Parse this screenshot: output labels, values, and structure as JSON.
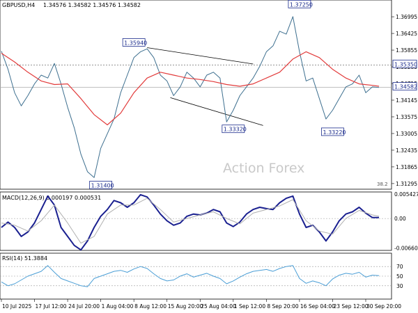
{
  "header": {
    "symbol": "GBPUSD,H4",
    "ohlc": "1.34576 1.34582 1.34576 1.34582"
  },
  "watermark": "Action Forex",
  "chart_data": [
    {
      "type": "line",
      "panel": "price",
      "title": "GBPUSD,H4",
      "subtitle": "1.34576 1.34582 1.34576 1.34582",
      "x_axis_dates": [
        "10 Jul 2025",
        "17 Jul 12:00",
        "24 Jul 20:00",
        "1 Aug 04:00",
        "8 Aug 12:00",
        "15 Aug 20:00",
        "25 Aug 04:00",
        "1 Sep 12:00",
        "8 Sep 20:00",
        "16 Sep 04:00",
        "23 Sep 12:00",
        "30 Sep 20:00"
      ],
      "yticks": [
        "1.36995",
        "1.36425",
        "1.35855",
        "1.35285",
        "1.34715",
        "1.34145",
        "1.33575",
        "1.33005",
        "1.32435",
        "1.31865",
        "1.31295"
      ],
      "ylim": [
        1.3115,
        1.3752
      ],
      "current_price": "1.34582",
      "current_price_value": 1.34582,
      "resistance_level": "1.35350",
      "resistance_value": 1.3535,
      "bottom_right_note": "38.2",
      "labeled_levels": [
        {
          "label": "1.37250",
          "x_date": "16 Sep 04:00",
          "value": 1.3725
        },
        {
          "label": "1.35940",
          "x_date": "8 Aug 12:00",
          "value": 1.3594
        },
        {
          "label": "1.33320",
          "x_date": "1 Sep 12:00",
          "value": 1.3332
        },
        {
          "label": "1.33220",
          "x_date": "23 Sep 12:00",
          "value": 1.3322
        },
        {
          "label": "1.31400",
          "x_date": "1 Aug 04:00",
          "value": 1.314
        }
      ],
      "trendlines": [
        {
          "from": [
            4.4,
            1.3594
          ],
          "to": [
            7.6,
            1.3538
          ]
        },
        {
          "from": [
            5.1,
            1.3423
          ],
          "to": [
            7.9,
            1.3328
          ]
        }
      ],
      "series": [
        {
          "name": "close",
          "color": "#3d6f8f",
          "x": [
            0,
            0.2,
            0.4,
            0.6,
            0.8,
            1.0,
            1.2,
            1.4,
            1.6,
            1.8,
            2.0,
            2.2,
            2.4,
            2.6,
            2.8,
            3.0,
            3.2,
            3.4,
            3.6,
            3.8,
            4.0,
            4.2,
            4.4,
            4.6,
            4.8,
            5.0,
            5.2,
            5.4,
            5.6,
            5.8,
            6.0,
            6.2,
            6.4,
            6.6,
            6.8,
            7.0,
            7.2,
            7.4,
            7.6,
            7.8,
            8.0,
            8.2,
            8.4,
            8.6,
            8.8,
            9.0,
            9.2,
            9.4,
            9.6,
            9.8,
            10.0,
            10.2,
            10.4,
            10.6,
            10.8,
            11.0,
            11.2,
            11.4
          ],
          "values": [
            1.3582,
            1.352,
            1.344,
            1.3395,
            1.343,
            1.347,
            1.35,
            1.349,
            1.354,
            1.347,
            1.339,
            1.332,
            1.323,
            1.317,
            1.315,
            1.325,
            1.33,
            1.335,
            1.344,
            1.35,
            1.356,
            1.358,
            1.359,
            1.356,
            1.35,
            1.348,
            1.343,
            1.346,
            1.351,
            1.349,
            1.346,
            1.35,
            1.351,
            1.349,
            1.334,
            1.338,
            1.343,
            1.346,
            1.349,
            1.353,
            1.358,
            1.36,
            1.365,
            1.364,
            1.37,
            1.358,
            1.348,
            1.349,
            1.342,
            1.335,
            1.338,
            1.342,
            1.346,
            1.347,
            1.35,
            1.344,
            1.346,
            1.3458
          ]
        },
        {
          "name": "moving average",
          "color": "#e23b3b",
          "x": [
            0,
            0.4,
            0.8,
            1.2,
            1.6,
            2.0,
            2.4,
            2.8,
            3.2,
            3.6,
            4.0,
            4.4,
            4.8,
            5.2,
            5.6,
            6.0,
            6.4,
            6.8,
            7.2,
            7.6,
            8.0,
            8.4,
            8.8,
            9.2,
            9.6,
            10.0,
            10.4,
            10.8,
            11.2,
            11.4
          ],
          "values": [
            1.3575,
            1.3545,
            1.351,
            1.348,
            1.3468,
            1.347,
            1.342,
            1.3365,
            1.333,
            1.337,
            1.344,
            1.349,
            1.351,
            1.35,
            1.349,
            1.3485,
            1.3478,
            1.3468,
            1.3462,
            1.347,
            1.349,
            1.351,
            1.3555,
            1.358,
            1.356,
            1.352,
            1.349,
            1.347,
            1.3465,
            1.3462
          ]
        }
      ]
    },
    {
      "type": "line",
      "panel": "macd",
      "title": "MACD(12,26,9) 0.000197 0.000531",
      "yticks": [
        "0.005427",
        "0.00",
        "-0.006603"
      ],
      "ylim": [
        -0.0068,
        0.0056
      ],
      "series": [
        {
          "name": "MACD",
          "color": "#1a2090",
          "x": [
            0,
            0.2,
            0.4,
            0.6,
            0.8,
            1.0,
            1.2,
            1.4,
            1.6,
            1.8,
            2.0,
            2.2,
            2.4,
            2.6,
            2.8,
            3.0,
            3.2,
            3.4,
            3.6,
            3.8,
            4.0,
            4.2,
            4.4,
            4.6,
            4.8,
            5.0,
            5.2,
            5.4,
            5.6,
            5.8,
            6.0,
            6.2,
            6.4,
            6.6,
            6.8,
            7.0,
            7.2,
            7.4,
            7.6,
            7.8,
            8.0,
            8.2,
            8.4,
            8.6,
            8.8,
            9.0,
            9.2,
            9.4,
            9.6,
            9.8,
            10.0,
            10.2,
            10.4,
            10.6,
            10.8,
            11.0,
            11.2,
            11.4
          ],
          "values": [
            -0.002,
            -0.0008,
            -0.002,
            -0.004,
            -0.003,
            -0.001,
            0.002,
            0.005,
            0.003,
            -0.002,
            -0.004,
            -0.006,
            -0.007,
            -0.005,
            -0.002,
            0.0005,
            0.002,
            0.004,
            0.0035,
            0.0025,
            0.0035,
            0.0053,
            0.0048,
            0.003,
            0.001,
            -0.0005,
            -0.0015,
            -0.001,
            0.0005,
            0.001,
            0.0008,
            0.0012,
            0.002,
            0.0015,
            -0.001,
            -0.0018,
            -0.0008,
            0.001,
            0.002,
            0.0025,
            0.0022,
            0.002,
            0.0035,
            0.0045,
            0.005,
            0.001,
            -0.002,
            -0.0015,
            -0.003,
            -0.005,
            -0.003,
            -0.0005,
            0.001,
            0.0015,
            0.0025,
            0.0012,
            0.0002,
            0.0002
          ]
        },
        {
          "name": "Signal",
          "color": "#b0b0b0",
          "x": [
            0,
            0.4,
            0.8,
            1.2,
            1.6,
            2.0,
            2.4,
            2.8,
            3.2,
            3.6,
            4.0,
            4.4,
            4.8,
            5.2,
            5.6,
            6.0,
            6.4,
            6.8,
            7.2,
            7.6,
            8.0,
            8.4,
            8.8,
            9.2,
            9.6,
            10.0,
            10.4,
            10.8,
            11.2,
            11.4
          ],
          "values": [
            -0.001,
            -0.0015,
            -0.0028,
            -0.0005,
            0.003,
            -0.001,
            -0.0055,
            -0.004,
            0.001,
            0.003,
            0.003,
            0.0045,
            0.002,
            -0.0008,
            0.0,
            0.0008,
            0.0015,
            0.0,
            -0.0012,
            0.0012,
            0.002,
            0.0028,
            0.0042,
            -0.0005,
            -0.0028,
            -0.0035,
            0.0,
            0.0018,
            0.0008,
            0.0005
          ]
        }
      ]
    },
    {
      "type": "line",
      "panel": "rsi",
      "title": "RSI(14) 51.3884",
      "yticks": [
        "70",
        "50",
        "30"
      ],
      "ylim": [
        5,
        95
      ],
      "series": [
        {
          "name": "RSI",
          "color": "#4a9ed6",
          "x": [
            0,
            0.2,
            0.4,
            0.6,
            0.8,
            1.0,
            1.2,
            1.4,
            1.6,
            1.8,
            2.0,
            2.2,
            2.4,
            2.6,
            2.8,
            3.0,
            3.2,
            3.4,
            3.6,
            3.8,
            4.0,
            4.2,
            4.4,
            4.6,
            4.8,
            5.0,
            5.2,
            5.4,
            5.6,
            5.8,
            6.0,
            6.2,
            6.4,
            6.6,
            6.8,
            7.0,
            7.2,
            7.4,
            7.6,
            7.8,
            8.0,
            8.2,
            8.4,
            8.6,
            8.8,
            9.0,
            9.2,
            9.4,
            9.6,
            9.8,
            10.0,
            10.2,
            10.4,
            10.6,
            10.8,
            11.0,
            11.2,
            11.4
          ],
          "values": [
            38,
            30,
            34,
            42,
            50,
            55,
            60,
            72,
            58,
            45,
            40,
            35,
            30,
            28,
            45,
            50,
            55,
            60,
            62,
            58,
            65,
            70,
            66,
            55,
            45,
            40,
            42,
            50,
            55,
            48,
            52,
            56,
            50,
            45,
            34,
            40,
            48,
            55,
            60,
            62,
            64,
            60,
            66,
            70,
            72,
            45,
            35,
            40,
            36,
            30,
            44,
            52,
            56,
            54,
            58,
            48,
            52,
            51
          ]
        }
      ]
    }
  ]
}
